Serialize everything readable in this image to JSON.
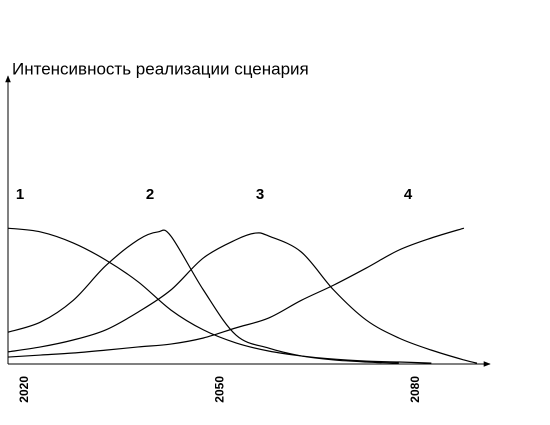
{
  "chart_data": {
    "type": "line",
    "title": "Интенсивность реализации сценария",
    "xlim": [
      2018,
      2092
    ],
    "ylim": [
      0,
      100
    ],
    "xticks": [
      2020,
      2050,
      2080
    ],
    "series": [
      {
        "name": "1",
        "color": "#000000",
        "x": [
          2018,
          2023,
          2028,
          2033,
          2038,
          2043,
          2048,
          2053,
          2058,
          2063,
          2068,
          2073,
          2078,
          2083
        ],
        "values": [
          47,
          45.7,
          41.9,
          36,
          28.4,
          18.7,
          11.8,
          7.3,
          4.5,
          2.8,
          1.7,
          1,
          0.7,
          0.3
        ]
      },
      {
        "name": "2",
        "color": "#000000",
        "x": [
          2018,
          2023,
          2028,
          2033,
          2038,
          2041,
          2043,
          2048,
          2053,
          2058,
          2063,
          2068,
          2073,
          2078
        ],
        "values": [
          11,
          14.5,
          22,
          34,
          43,
          45.7,
          44.3,
          25.6,
          10,
          5.5,
          2.8,
          1.4,
          0.7,
          0.3
        ]
      },
      {
        "name": "3",
        "color": "#000000",
        "x": [
          2018,
          2023,
          2028,
          2033,
          2038,
          2043,
          2048,
          2053,
          2056,
          2058,
          2063,
          2068,
          2073,
          2078,
          2083,
          2088,
          2090
        ],
        "values": [
          4.2,
          5.9,
          8.3,
          11.8,
          18,
          25.6,
          36.7,
          43,
          45.3,
          44.3,
          38.8,
          25.6,
          15.2,
          9,
          4.8,
          1.4,
          0.3
        ]
      },
      {
        "name": "4",
        "color": "#000000",
        "x": [
          2018,
          2023,
          2028,
          2033,
          2038,
          2043,
          2048,
          2053,
          2058,
          2063,
          2068,
          2073,
          2078,
          2083,
          2088
        ],
        "values": [
          2.4,
          3.1,
          3.8,
          4.8,
          5.9,
          6.9,
          9,
          12.5,
          15.9,
          22,
          27.3,
          33.2,
          39.4,
          43.6,
          47
        ]
      }
    ]
  }
}
